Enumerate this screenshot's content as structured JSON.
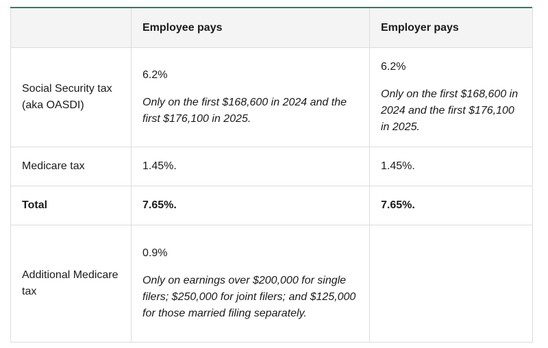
{
  "header": {
    "blank": "",
    "employee": "Employee pays",
    "employer": "Employer pays"
  },
  "rows": [
    {
      "label": "Social Security tax (aka OASDI)",
      "employee_pct": "6.2%",
      "employee_note": "Only on the first $168,600 in 2024 and the first $176,100 in 2025.",
      "employer_pct": "6.2%",
      "employer_note": "Only on the first $168,600 in 2024 and the first $176,100 in 2025."
    },
    {
      "label": "Medicare tax",
      "employee_pct": "1.45%.",
      "employer_pct": "1.45%."
    },
    {
      "label": "Total",
      "employee_pct": "7.65%.",
      "employer_pct": "7.65%."
    },
    {
      "label": "Additional Medicare tax",
      "employee_pct": "0.9%",
      "employee_note": "Only on earnings over $200,000 for single filers; $250,000 for joint filers; and $125,000 for those married filing separately.",
      "employer_pct": ""
    }
  ],
  "colors": {
    "accent": "#1f8a4c",
    "header_bg": "#f4f4f4",
    "border": "#dcdcdc"
  }
}
